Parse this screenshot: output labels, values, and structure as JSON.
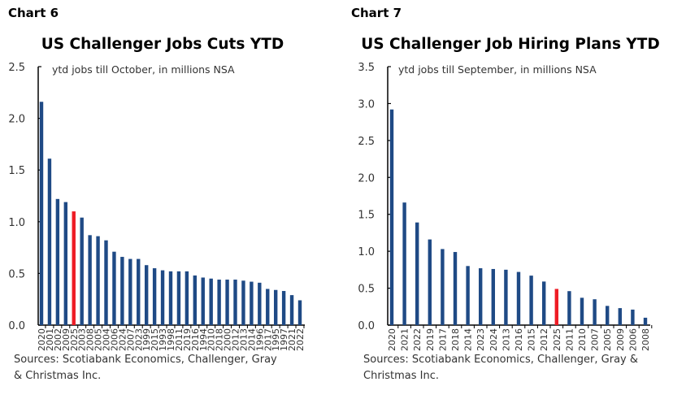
{
  "chart_data": [
    {
      "label": "Chart 6",
      "type": "bar",
      "title": "US Challenger Jobs Cuts YTD",
      "subtitle": "ytd jobs till October, in millions NSA",
      "source": [
        "Sources: Scotiabank Economics, Challenger, Gray",
        "& Christmas Inc."
      ],
      "ylim": [
        0,
        2.5
      ],
      "yticks": [
        "0.0",
        "0.5",
        "1.0",
        "1.5",
        "2.0",
        "2.5"
      ],
      "grid": false,
      "highlight": "2025",
      "colors": {
        "bar": "#1f4a85",
        "highlight": "#ee1c25"
      },
      "categories": [
        "2020",
        "2001",
        "2002",
        "2009",
        "2025",
        "2003",
        "2008",
        "2005",
        "2004",
        "2006",
        "2024",
        "2007",
        "2023",
        "1999",
        "2015",
        "1993",
        "1998",
        "2011",
        "2019",
        "2016",
        "1994",
        "2010",
        "2018",
        "2000",
        "2012",
        "2013",
        "2014",
        "1996",
        "2017",
        "1995",
        "1997",
        "2021",
        "2022"
      ],
      "values": [
        2.16,
        1.61,
        1.22,
        1.19,
        1.1,
        1.04,
        0.87,
        0.86,
        0.82,
        0.71,
        0.66,
        0.64,
        0.64,
        0.58,
        0.55,
        0.53,
        0.52,
        0.52,
        0.52,
        0.48,
        0.46,
        0.45,
        0.44,
        0.44,
        0.44,
        0.43,
        0.42,
        0.41,
        0.35,
        0.34,
        0.33,
        0.29,
        0.24
      ]
    },
    {
      "label": "Chart 7",
      "type": "bar",
      "title": "US Challenger Job Hiring Plans YTD",
      "subtitle": "ytd jobs till September, in millions NSA",
      "source": [
        "Sources: Scotiabank Economics, Challenger, Gray &",
        "Christmas Inc."
      ],
      "ylim": [
        0,
        3.5
      ],
      "yticks": [
        "0.0",
        "0.5",
        "1.0",
        "1.5",
        "2.0",
        "2.5",
        "3.0",
        "3.5"
      ],
      "grid": false,
      "highlight": "2025",
      "colors": {
        "bar": "#1f4a85",
        "highlight": "#ee1c25"
      },
      "categories": [
        "2020",
        "2021",
        "2022",
        "2019",
        "2017",
        "2018",
        "2014",
        "2023",
        "2024",
        "2013",
        "2016",
        "2015",
        "2012",
        "2025",
        "2011",
        "2010",
        "2007",
        "2005",
        "2009",
        "2006",
        "2008"
      ],
      "values": [
        2.92,
        1.66,
        1.39,
        1.16,
        1.03,
        0.99,
        0.8,
        0.77,
        0.76,
        0.75,
        0.72,
        0.67,
        0.59,
        0.49,
        0.46,
        0.37,
        0.35,
        0.26,
        0.23,
        0.21,
        0.1
      ]
    }
  ]
}
